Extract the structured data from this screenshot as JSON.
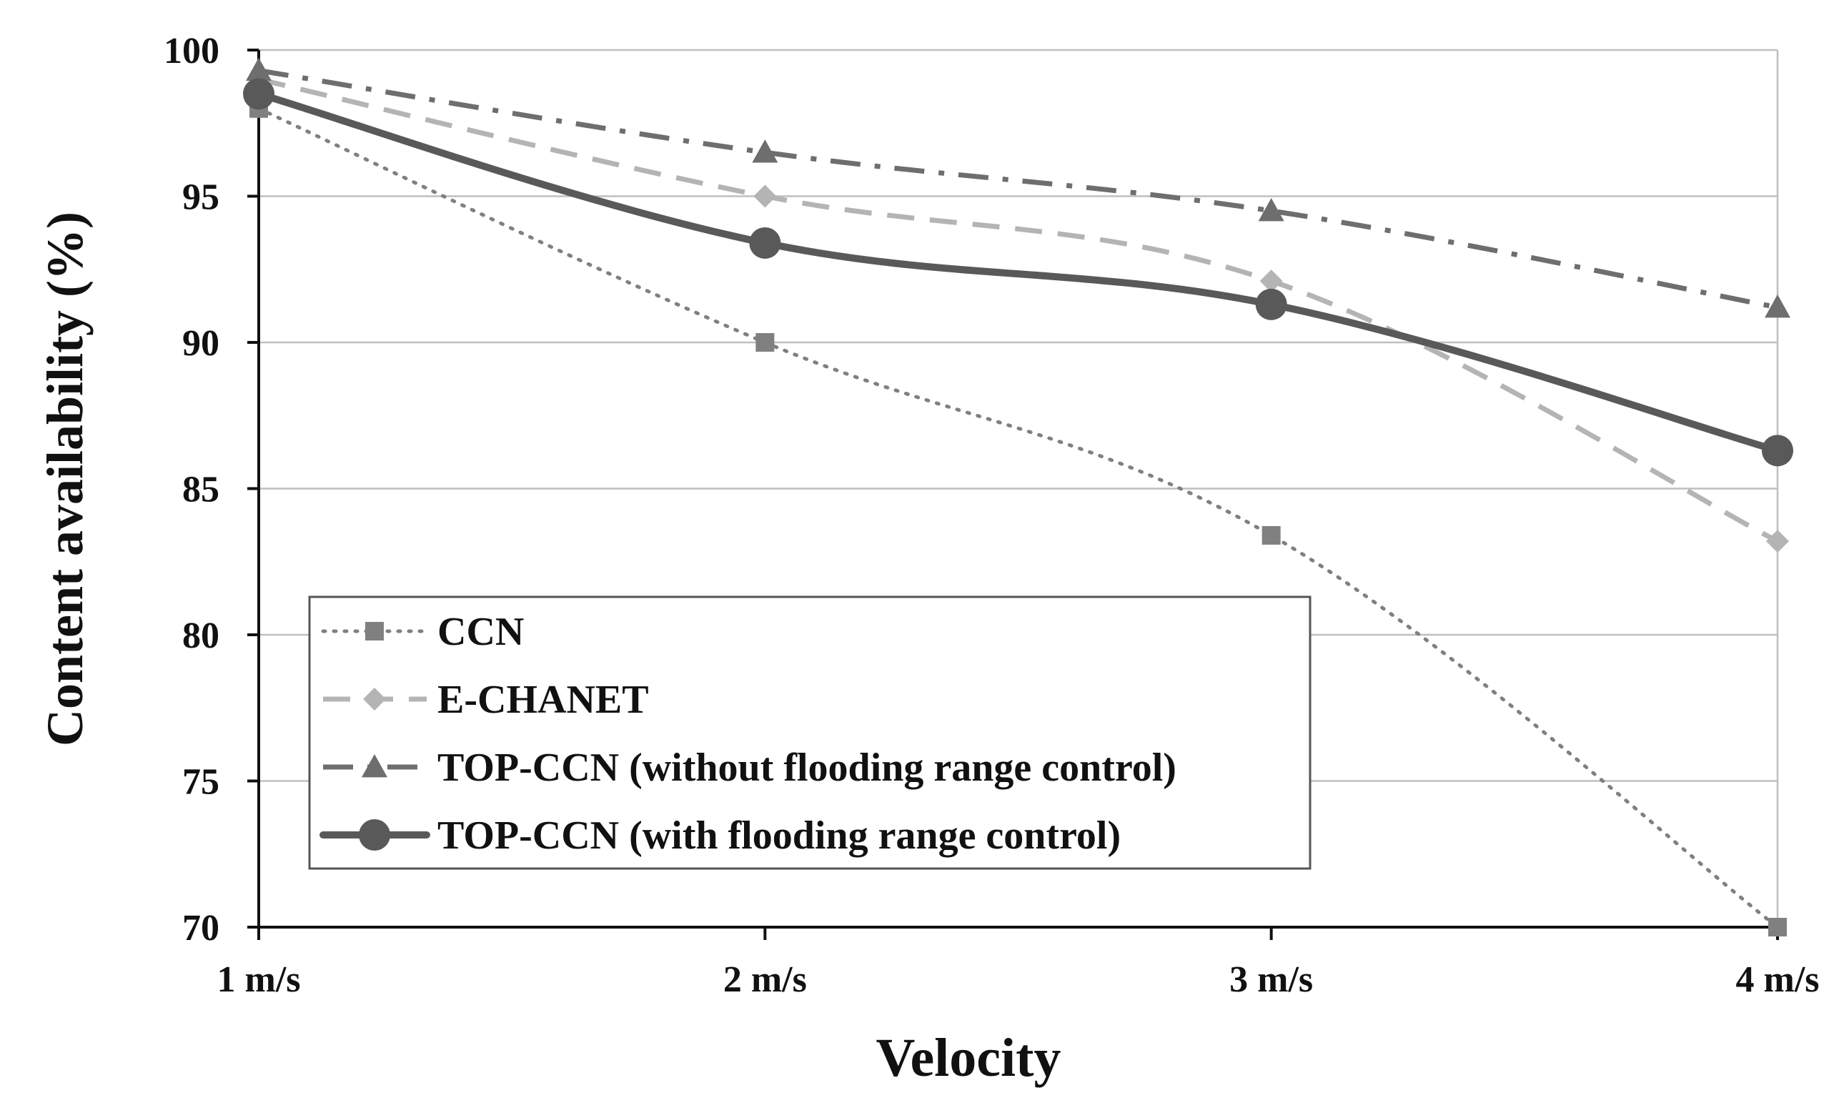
{
  "chart_data": {
    "type": "line",
    "title": "",
    "xlabel": "Velocity",
    "ylabel": "Content availability (%)",
    "categories": [
      "1 m/s",
      "2 m/s",
      "3 m/s",
      "4 m/s"
    ],
    "ylim": [
      70,
      100
    ],
    "yticks": [
      70,
      75,
      80,
      85,
      90,
      95,
      100
    ],
    "grid": true,
    "legend_position": "lower-left",
    "series": [
      {
        "name": "CCN",
        "values": [
          98.0,
          90.0,
          83.4,
          70.0
        ],
        "color": "#808080",
        "marker": "square",
        "style": "dotted"
      },
      {
        "name": "E-CHANET",
        "values": [
          99.0,
          95.0,
          92.1,
          83.2
        ],
        "color": "#b4b4b4",
        "marker": "diamond",
        "style": "dashed"
      },
      {
        "name": "TOP-CCN (without flooding range control)",
        "values": [
          99.3,
          96.5,
          94.5,
          91.2
        ],
        "color": "#6e6e6e",
        "marker": "triangle",
        "style": "dashdot"
      },
      {
        "name": "TOP-CCN (with flooding range control)",
        "values": [
          98.5,
          93.4,
          91.3,
          86.3
        ],
        "color": "#595959",
        "marker": "circle",
        "style": "solid"
      }
    ]
  }
}
